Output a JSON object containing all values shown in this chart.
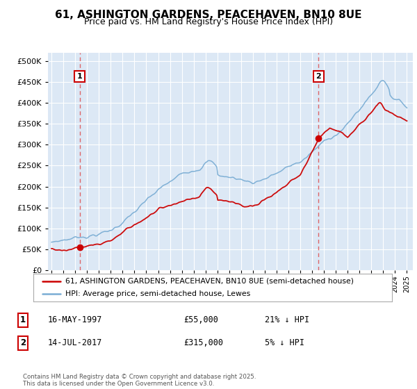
{
  "title": "61, ASHINGTON GARDENS, PEACEHAVEN, BN10 8UE",
  "subtitle": "Price paid vs. HM Land Registry's House Price Index (HPI)",
  "legend_line1": "61, ASHINGTON GARDENS, PEACEHAVEN, BN10 8UE (semi-detached house)",
  "legend_line2": "HPI: Average price, semi-detached house, Lewes",
  "annotation1_label": "1",
  "annotation1_date": "16-MAY-1997",
  "annotation1_price": "£55,000",
  "annotation1_hpi": "21% ↓ HPI",
  "annotation1_year": 1997.37,
  "annotation1_value": 55000,
  "annotation2_label": "2",
  "annotation2_date": "14-JUL-2017",
  "annotation2_price": "£315,000",
  "annotation2_hpi": "5% ↓ HPI",
  "annotation2_year": 2017.54,
  "annotation2_value": 315000,
  "price_color": "#cc0000",
  "hpi_color": "#7aadd4",
  "vline_color": "#dd4444",
  "background_color": "#dce8f5",
  "grid_color": "#c5d8ee",
  "ylim": [
    0,
    520000
  ],
  "xlim": [
    1994.7,
    2025.5
  ],
  "yticks": [
    0,
    50000,
    100000,
    150000,
    200000,
    250000,
    300000,
    350000,
    400000,
    450000,
    500000
  ],
  "footer": "Contains HM Land Registry data © Crown copyright and database right 2025.\nThis data is licensed under the Open Government Licence v3.0.",
  "title_fontsize": 11,
  "subtitle_fontsize": 9
}
